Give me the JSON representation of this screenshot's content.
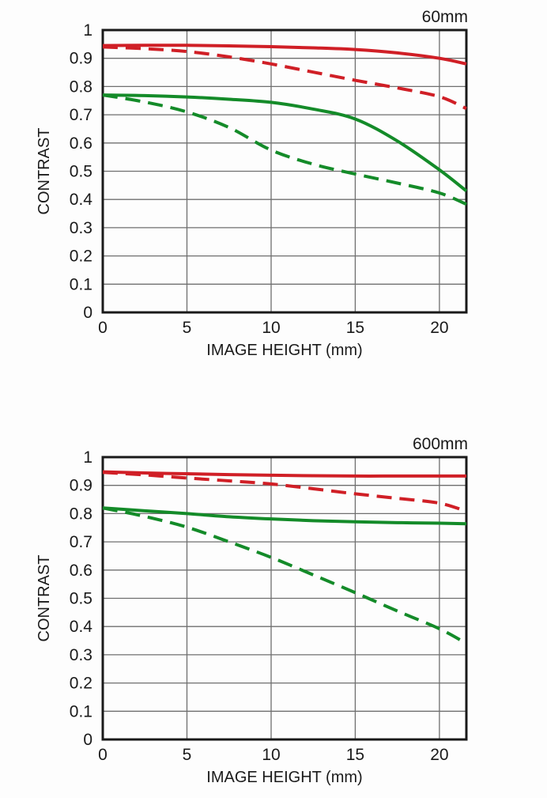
{
  "page": {
    "background_color": "#fdfdfd",
    "text_color": "#1a1a1a",
    "grid_color": "#6f6f6f",
    "border_color": "#1a1a1a"
  },
  "chart_data": [
    {
      "type": "line",
      "title": "60mm",
      "xlabel": "IMAGE HEIGHT (mm)",
      "ylabel": "CONTRAST",
      "xlim": [
        0,
        21.6
      ],
      "ylim": [
        0,
        1
      ],
      "x_ticks": [
        0,
        5,
        10,
        15,
        20
      ],
      "y_ticks": [
        0,
        0.1,
        0.2,
        0.3,
        0.4,
        0.5,
        0.6,
        0.7,
        0.8,
        0.9,
        1
      ],
      "grid": true,
      "legend": "none",
      "series": [
        {
          "name": "green-dashed",
          "color": "#148b29",
          "style": "dashed",
          "x": [
            0,
            2.5,
            5,
            7.5,
            10,
            12.5,
            15,
            17.5,
            20,
            21.6
          ],
          "y": [
            0.77,
            0.745,
            0.71,
            0.655,
            0.575,
            0.525,
            0.49,
            0.458,
            0.423,
            0.383
          ]
        },
        {
          "name": "green-solid",
          "color": "#148b29",
          "style": "solid",
          "x": [
            0,
            2.5,
            5,
            7.5,
            10,
            12.5,
            15,
            17.5,
            20,
            21.6
          ],
          "y": [
            0.77,
            0.768,
            0.763,
            0.755,
            0.744,
            0.72,
            0.685,
            0.607,
            0.505,
            0.43
          ]
        },
        {
          "name": "red-dashed",
          "color": "#d01f26",
          "style": "dashed",
          "x": [
            0,
            2.5,
            5,
            7.5,
            10,
            12.5,
            15,
            17.5,
            20,
            21.6
          ],
          "y": [
            0.94,
            0.934,
            0.924,
            0.905,
            0.88,
            0.851,
            0.822,
            0.795,
            0.764,
            0.722
          ]
        },
        {
          "name": "red-solid",
          "color": "#d01f26",
          "style": "solid",
          "x": [
            0,
            2.5,
            5,
            7.5,
            10,
            12.5,
            15,
            17.5,
            20,
            21.6
          ],
          "y": [
            0.945,
            0.946,
            0.946,
            0.944,
            0.941,
            0.937,
            0.931,
            0.919,
            0.9,
            0.88
          ]
        }
      ]
    },
    {
      "type": "line",
      "title": "600mm",
      "xlabel": "IMAGE HEIGHT (mm)",
      "ylabel": "CONTRAST",
      "xlim": [
        0,
        21.6
      ],
      "ylim": [
        0,
        1
      ],
      "x_ticks": [
        0,
        5,
        10,
        15,
        20
      ],
      "y_ticks": [
        0,
        0.1,
        0.2,
        0.3,
        0.4,
        0.5,
        0.6,
        0.7,
        0.8,
        0.9,
        1
      ],
      "grid": true,
      "legend": "none",
      "series": [
        {
          "name": "green-dashed",
          "color": "#148b29",
          "style": "dashed",
          "x": [
            0,
            2.5,
            5,
            7.5,
            10,
            12.5,
            15,
            17.5,
            20,
            21.6
          ],
          "y": [
            0.82,
            0.79,
            0.752,
            0.7,
            0.645,
            0.583,
            0.52,
            0.455,
            0.392,
            0.34
          ]
        },
        {
          "name": "green-solid",
          "color": "#148b29",
          "style": "solid",
          "x": [
            0,
            2.5,
            5,
            7.5,
            10,
            12.5,
            15,
            17.5,
            20,
            21.6
          ],
          "y": [
            0.82,
            0.81,
            0.8,
            0.789,
            0.781,
            0.775,
            0.771,
            0.768,
            0.766,
            0.764
          ]
        },
        {
          "name": "red-dashed",
          "color": "#d01f26",
          "style": "dashed",
          "x": [
            0,
            2.5,
            5,
            7.5,
            10,
            12.5,
            15,
            17.5,
            20,
            21.6
          ],
          "y": [
            0.946,
            0.937,
            0.926,
            0.916,
            0.905,
            0.888,
            0.87,
            0.854,
            0.837,
            0.808
          ]
        },
        {
          "name": "red-solid",
          "color": "#d01f26",
          "style": "solid",
          "x": [
            0,
            2.5,
            5,
            7.5,
            10,
            12.5,
            15,
            17.5,
            20,
            21.6
          ],
          "y": [
            0.948,
            0.944,
            0.941,
            0.938,
            0.936,
            0.934,
            0.933,
            0.933,
            0.933,
            0.933
          ]
        }
      ]
    }
  ]
}
